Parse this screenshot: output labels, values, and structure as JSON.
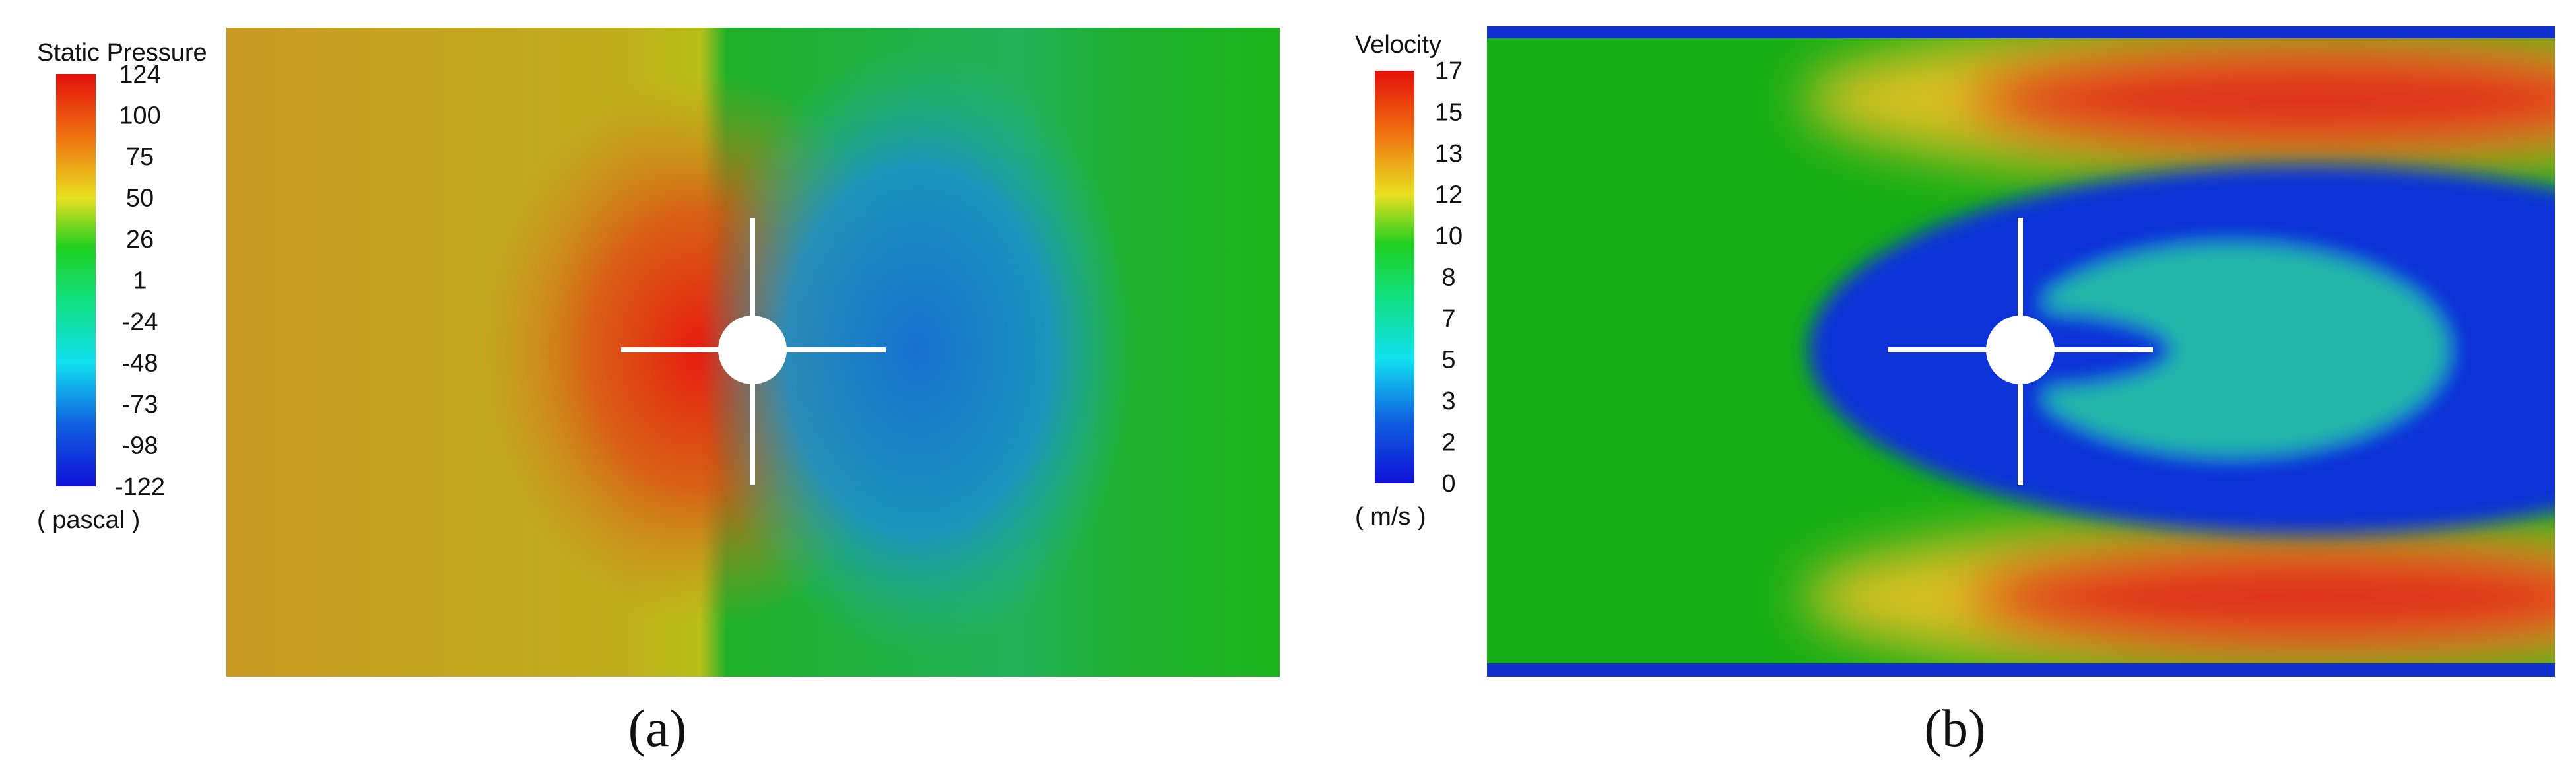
{
  "panels": [
    {
      "legend": {
        "title": "Static Pressure",
        "ticks": [
          "124",
          "100",
          "75",
          "50",
          "26",
          "1",
          "-24",
          "-48",
          "-73",
          "-98",
          "-122"
        ],
        "unit": "( pascal )"
      },
      "caption": "(a)"
    },
    {
      "legend": {
        "title": "Velocity",
        "ticks": [
          "17",
          "15",
          "13",
          "12",
          "10",
          "8",
          "7",
          "5",
          "3",
          "2",
          "0"
        ],
        "unit": "( m/s )"
      },
      "caption": "(b)"
    }
  ]
}
